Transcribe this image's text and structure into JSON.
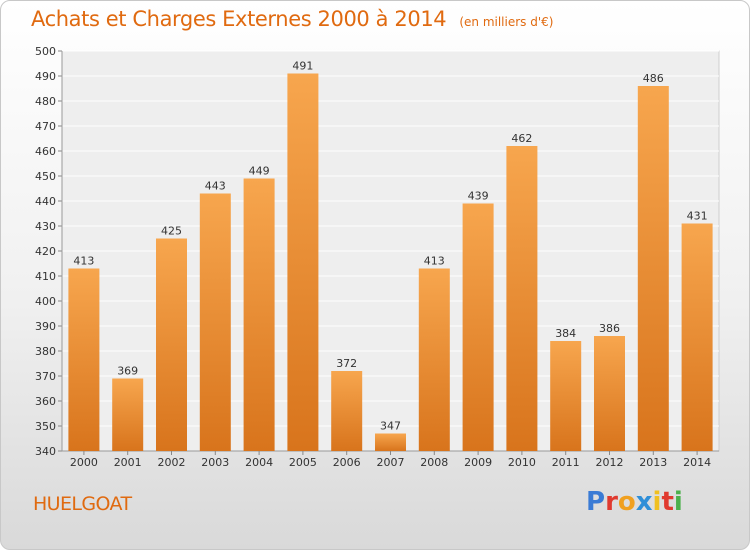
{
  "title": "Achats et Charges Externes 2000 à 2014",
  "subtitle": "(en milliers d'€)",
  "commune": "HUELGOAT",
  "brand": {
    "letters": [
      {
        "ch": "P",
        "color": "#3a7bd5"
      },
      {
        "ch": "r",
        "color": "#e03a2f"
      },
      {
        "ch": "o",
        "color": "#f0a020"
      },
      {
        "ch": "x",
        "color": "#2f8fd8"
      },
      {
        "ch": "i",
        "color": "#f0c020"
      },
      {
        "ch": "t",
        "color": "#e03a2f"
      },
      {
        "ch": "i",
        "color": "#4bb04b"
      }
    ]
  },
  "colors": {
    "bar_top": "#f7a64e",
    "bar_bottom": "#d8741c",
    "title": "#e06a10"
  },
  "chart_data": {
    "type": "bar",
    "categories": [
      "2000",
      "2001",
      "2002",
      "2003",
      "2004",
      "2005",
      "2006",
      "2007",
      "2008",
      "2009",
      "2010",
      "2011",
      "2012",
      "2013",
      "2014"
    ],
    "values": [
      413,
      369,
      425,
      443,
      449,
      491,
      372,
      347,
      413,
      439,
      462,
      384,
      386,
      486,
      431
    ],
    "ylim": [
      340,
      500
    ],
    "yticks": [
      340,
      350,
      360,
      370,
      380,
      390,
      400,
      410,
      420,
      430,
      440,
      450,
      460,
      470,
      480,
      490,
      500
    ],
    "grid": true,
    "title": "Achats et Charges Externes 2000 à 2014",
    "xlabel": "",
    "ylabel": ""
  }
}
